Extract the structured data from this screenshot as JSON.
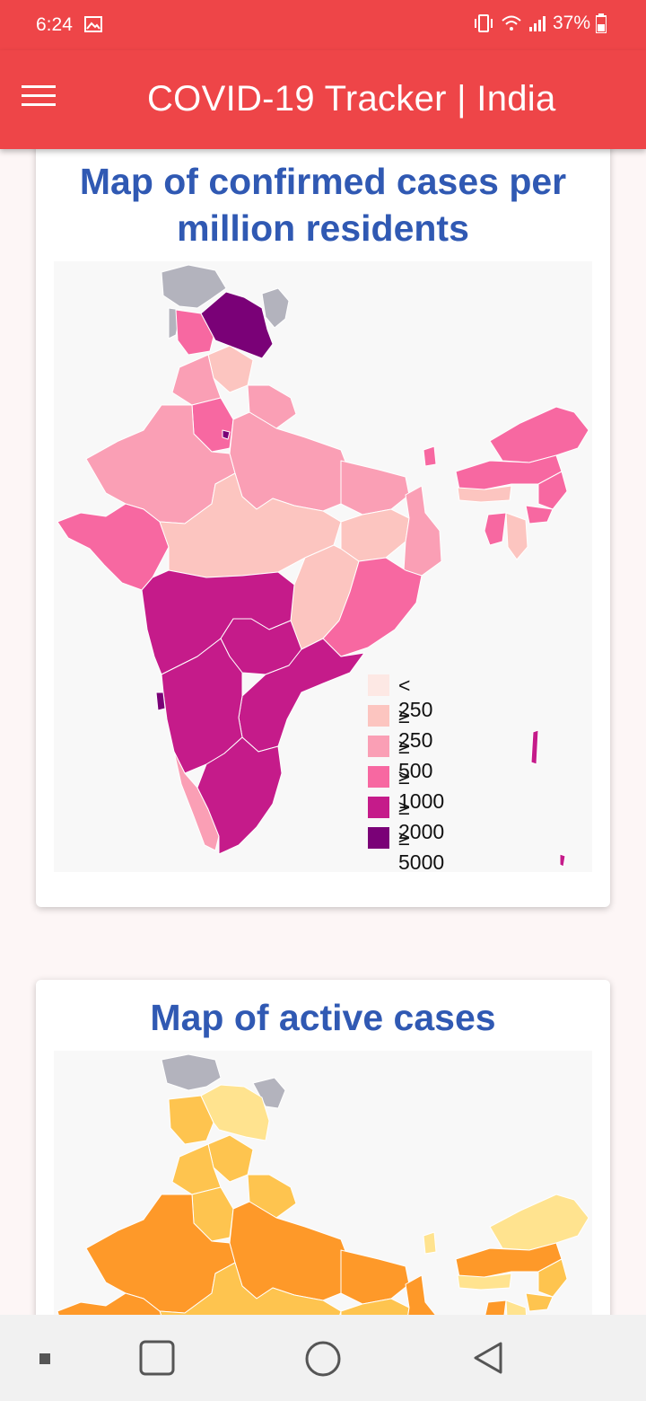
{
  "status_bar": {
    "time": "6:24",
    "battery": "37%",
    "icons": [
      "gallery-icon",
      "vibrate-icon",
      "wifi-icon",
      "signal-icon",
      "battery-icon"
    ]
  },
  "app_bar": {
    "title": "COVID-19 Tracker | India",
    "menu_icon": "hamburger-menu-icon"
  },
  "cards": [
    {
      "title_line1": "Map of confirmed cases per",
      "title_line2": "million residents",
      "legend": [
        {
          "label": "< 250",
          "color": "#fde8e4"
        },
        {
          "label": "≥ 250",
          "color": "#fcc5c0"
        },
        {
          "label": "≥ 500",
          "color": "#fa9fb5"
        },
        {
          "label": "≥ 1000",
          "color": "#f768a1"
        },
        {
          "label": "≥ 2000",
          "color": "#c51b8a"
        },
        {
          "label": "≥ 5000",
          "color": "#7a0177"
        }
      ],
      "no_data_color": "#b3b3bd"
    },
    {
      "title": "Map of active cases",
      "colors": {
        "light": "#ffe38f",
        "mid": "#fec44f",
        "dark": "#fe9929"
      }
    }
  ],
  "nav_bar": {
    "buttons": [
      "dot-icon",
      "recents-square-icon",
      "home-circle-icon",
      "back-triangle-icon"
    ]
  }
}
